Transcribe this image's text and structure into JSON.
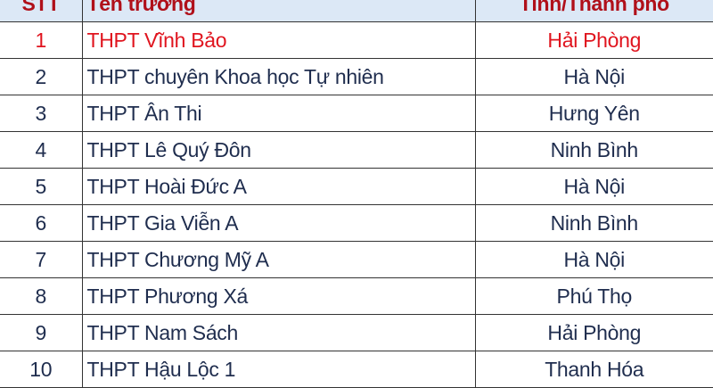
{
  "table": {
    "headers": {
      "stt": "STT",
      "name": "Tên trường",
      "province": "Tỉnh/Thành phố"
    },
    "highlight_color": "#e0141e",
    "header_color": "#b0101a",
    "rows": [
      {
        "stt": "1",
        "name": "THPT Vĩnh Bảo",
        "province": "Hải Phòng"
      },
      {
        "stt": "2",
        "name": "THPT chuyên Khoa học Tự nhiên",
        "province": "Hà Nội"
      },
      {
        "stt": "3",
        "name": "THPT Ân Thi",
        "province": "Hưng Yên"
      },
      {
        "stt": "4",
        "name": "THPT Lê Quý Đôn",
        "province": "Ninh Bình"
      },
      {
        "stt": "5",
        "name": "THPT Hoài Đức A",
        "province": "Hà Nội"
      },
      {
        "stt": "6",
        "name": "THPT Gia Viễn A",
        "province": "Ninh Bình"
      },
      {
        "stt": "7",
        "name": "THPT Chương Mỹ A",
        "province": "Hà Nội"
      },
      {
        "stt": "8",
        "name": "THPT Phương Xá",
        "province": "Phú Thọ"
      },
      {
        "stt": "9",
        "name": "THPT Nam Sách",
        "province": "Hải Phòng"
      },
      {
        "stt": "10",
        "name": "THPT Hậu Lộc 1",
        "province": "Thanh Hóa"
      }
    ]
  }
}
